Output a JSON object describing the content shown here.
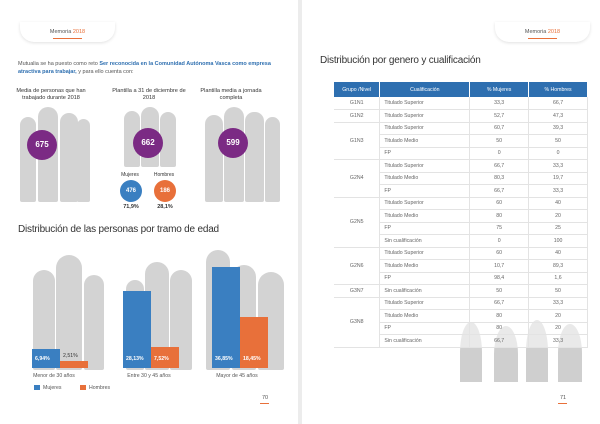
{
  "left_page": {
    "header": {
      "prefix": "Memoria",
      "year": "2018"
    },
    "intro": {
      "before": "Mutualia se ha puesto como reto ",
      "highlight": "Ser reconocida en la Comunidad Autónoma Vasca como empresa atractiva para trabajar,",
      "after": " y para ello cuenta con:"
    },
    "stats": [
      {
        "label": "Media de personas que han trabajado durante 2018",
        "value": "675",
        "color": "#7b2a84"
      },
      {
        "label": "Plantilla a 31 de diciembre de 2018",
        "value": "662",
        "color": "#7b2a84"
      },
      {
        "label": "Plantilla media a jornada completa",
        "value": "599",
        "color": "#7b2a84"
      }
    ],
    "gender_split": {
      "women_label": "Mujeres",
      "men_label": "Hombres",
      "women_value": "476",
      "men_value": "186",
      "women_pct": "71,9%",
      "men_pct": "28,1%",
      "women_color": "#3a7fc1",
      "men_color": "#e8703a"
    },
    "chart_title": "Distribución de las personas por tramo de edad",
    "legend": {
      "women": "Mujeres",
      "men": "Hombres"
    },
    "page_number": "70"
  },
  "chart_data": {
    "type": "bar",
    "title": "Distribución de las personas por tramo de edad",
    "categories": [
      "Menor de 30 años",
      "Entre 30 y 45 años",
      "Mayor de 45 años"
    ],
    "series": [
      {
        "name": "Mujeres",
        "values": [
          6.94,
          28.13,
          36.85
        ],
        "labels": [
          "6,94%",
          "28,13%",
          "36,85%"
        ],
        "color": "#3a7fc1"
      },
      {
        "name": "Hombres",
        "values": [
          2.51,
          7.52,
          18.45
        ],
        "labels": [
          "2,51%",
          "7,52%",
          "18,45%"
        ],
        "color": "#e8703a"
      }
    ],
    "ylim": [
      0,
      40
    ]
  },
  "right_page": {
    "header": {
      "prefix": "Memoria",
      "year": "2018"
    },
    "title": "Distribución por genero y cualificación",
    "table": {
      "headers": [
        "Grupo /Nivel",
        "Cualificación",
        "% Mujeres",
        "% Hombres"
      ],
      "groups": [
        {
          "name": "G1N1",
          "rows": [
            [
              "Titulado Superior",
              "33,3",
              "66,7"
            ]
          ]
        },
        {
          "name": "G1N2",
          "rows": [
            [
              "Titulado Superior",
              "52,7",
              "47,3"
            ]
          ]
        },
        {
          "name": "G1N3",
          "rows": [
            [
              "Titulado Superior",
              "60,7",
              "39,3"
            ],
            [
              "Titulado Medio",
              "50",
              "50"
            ],
            [
              "FP",
              "0",
              "0"
            ]
          ]
        },
        {
          "name": "G2N4",
          "rows": [
            [
              "Titulado Superior",
              "66,7",
              "33,3"
            ],
            [
              "Titulado Medio",
              "80,3",
              "19,7"
            ],
            [
              "FP",
              "66,7",
              "33,3"
            ]
          ]
        },
        {
          "name": "G2N5",
          "rows": [
            [
              "Titulado Superior",
              "60",
              "40"
            ],
            [
              "Titulado Medio",
              "80",
              "20"
            ],
            [
              "FP",
              "75",
              "25"
            ],
            [
              "Sin cualificación",
              "0",
              "100"
            ]
          ]
        },
        {
          "name": "G2N6",
          "rows": [
            [
              "Titulado Superior",
              "60",
              "40"
            ],
            [
              "Titulado Medio",
              "10,7",
              "89,3"
            ],
            [
              "FP",
              "98,4",
              "1,6"
            ]
          ]
        },
        {
          "name": "G3N7",
          "rows": [
            [
              "Sin cualificación",
              "50",
              "50"
            ]
          ]
        },
        {
          "name": "G3N8",
          "rows": [
            [
              "Titulado Superior",
              "66,7",
              "33,3"
            ],
            [
              "Titulado Medio",
              "80",
              "20"
            ],
            [
              "FP",
              "80",
              "20"
            ],
            [
              "Sin cualificación",
              "66,7",
              "33,3"
            ]
          ]
        }
      ]
    },
    "page_number": "71"
  }
}
